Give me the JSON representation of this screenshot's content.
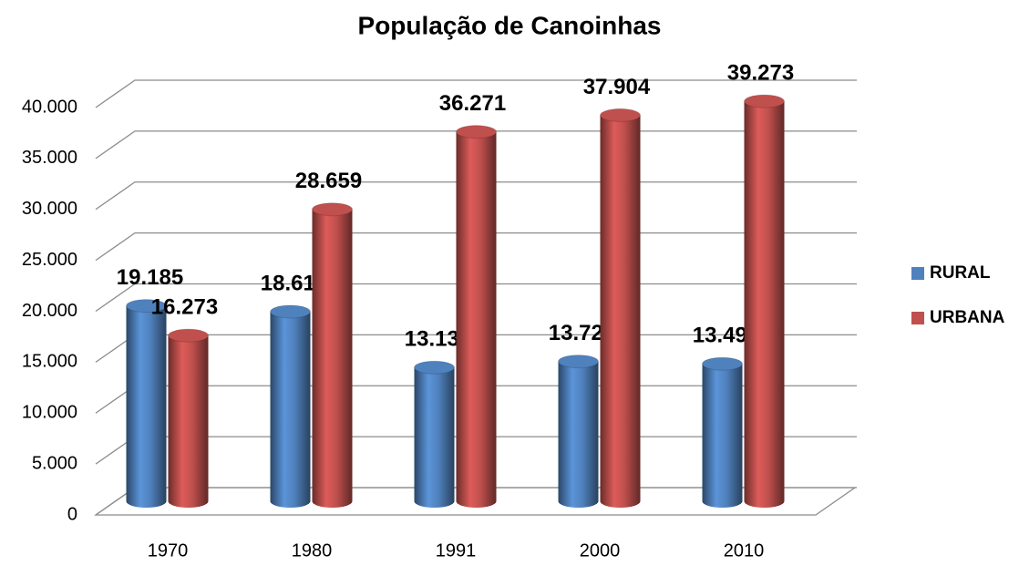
{
  "chart_data": {
    "type": "bar3d",
    "title": "População de Canoinhas",
    "categories": [
      "1970",
      "1980",
      "1991",
      "2000",
      "2010"
    ],
    "series": [
      {
        "name": "RURAL",
        "color": "#4f81bd",
        "values": [
          19185,
          18613,
          13133,
          13727,
          13492
        ],
        "value_labels": [
          "19.185",
          "18.613",
          "13.133",
          "13.727",
          "13.492"
        ]
      },
      {
        "name": "URBANA",
        "color": "#c0504d",
        "values": [
          16273,
          28659,
          36271,
          37904,
          39273
        ],
        "value_labels": [
          "16.273",
          "28.659",
          "36.271",
          "37.904",
          "39.273"
        ]
      }
    ],
    "ylim": [
      0,
      40000
    ],
    "yticks": [
      0,
      {
        "value": 5000,
        "label": "5.000"
      },
      {
        "value": 10000,
        "label": "10.000"
      },
      {
        "value": 15000,
        "label": "15.000"
      },
      {
        "value": 20000,
        "label": "20.000"
      },
      {
        "value": 25000,
        "label": "25.000"
      },
      {
        "value": 30000,
        "label": "30.000"
      },
      {
        "value": 35000,
        "label": "35.000"
      },
      {
        "value": 40000,
        "label": "40.000"
      }
    ],
    "grid": true,
    "legend": "right"
  }
}
